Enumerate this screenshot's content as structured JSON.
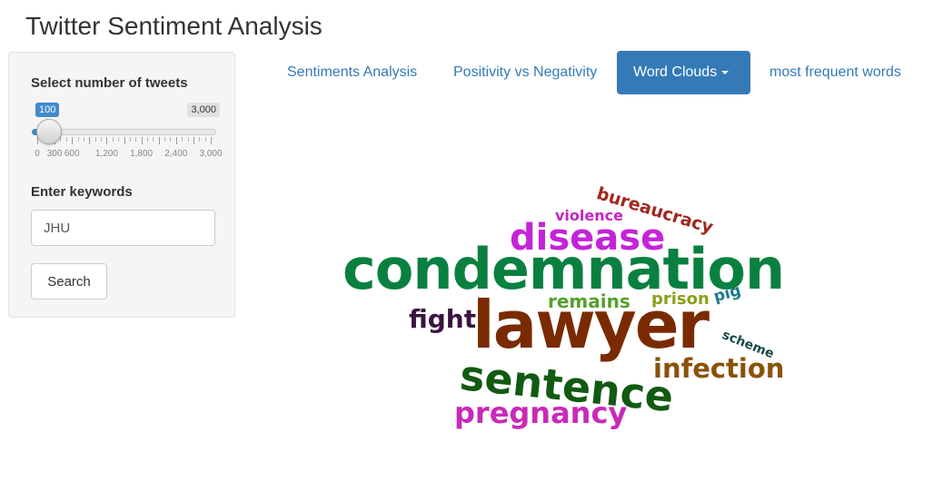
{
  "app": {
    "title": "Twitter Sentiment Analysis"
  },
  "sidebar": {
    "slider": {
      "label": "Select number of tweets",
      "value": 100,
      "min": 0,
      "max": 3000,
      "value_label": "100",
      "max_label": "3,000",
      "tick_labels": [
        "0",
        "300",
        "600",
        "1,200",
        "1,800",
        "2,400",
        "3,000"
      ]
    },
    "keywords": {
      "label": "Enter keywords",
      "value": "JHU"
    },
    "search_button": "Search"
  },
  "tabs": [
    {
      "label": "Sentiments Analysis",
      "active": false
    },
    {
      "label": "Positivity vs Negativity",
      "active": false
    },
    {
      "label": "Word Clouds",
      "active": true,
      "dropdown": true
    },
    {
      "label": "most frequent words",
      "active": false
    }
  ],
  "wordcloud": {
    "words": [
      {
        "text": "bureaucracy",
        "color": "#a0281e"
      },
      {
        "text": "violence",
        "color": "#c424c4"
      },
      {
        "text": "disease",
        "color": "#c424d8"
      },
      {
        "text": "condemnation",
        "color": "#0a8040"
      },
      {
        "text": "remains",
        "color": "#55a02a"
      },
      {
        "text": "prison",
        "color": "#8aa01a"
      },
      {
        "text": "pig",
        "color": "#1a7a8a"
      },
      {
        "text": "fight",
        "color": "#3a1440"
      },
      {
        "text": "lawyer",
        "color": "#7a2a00"
      },
      {
        "text": "scheme",
        "color": "#1a4a4a"
      },
      {
        "text": "sentence",
        "color": "#125a12"
      },
      {
        "text": "infection",
        "color": "#8a5208"
      },
      {
        "text": "pregnancy",
        "color": "#c82ab8"
      }
    ]
  },
  "colors": {
    "accent": "#337ab7",
    "slider_badge": "#428bca",
    "panel_bg": "#f5f5f5"
  }
}
